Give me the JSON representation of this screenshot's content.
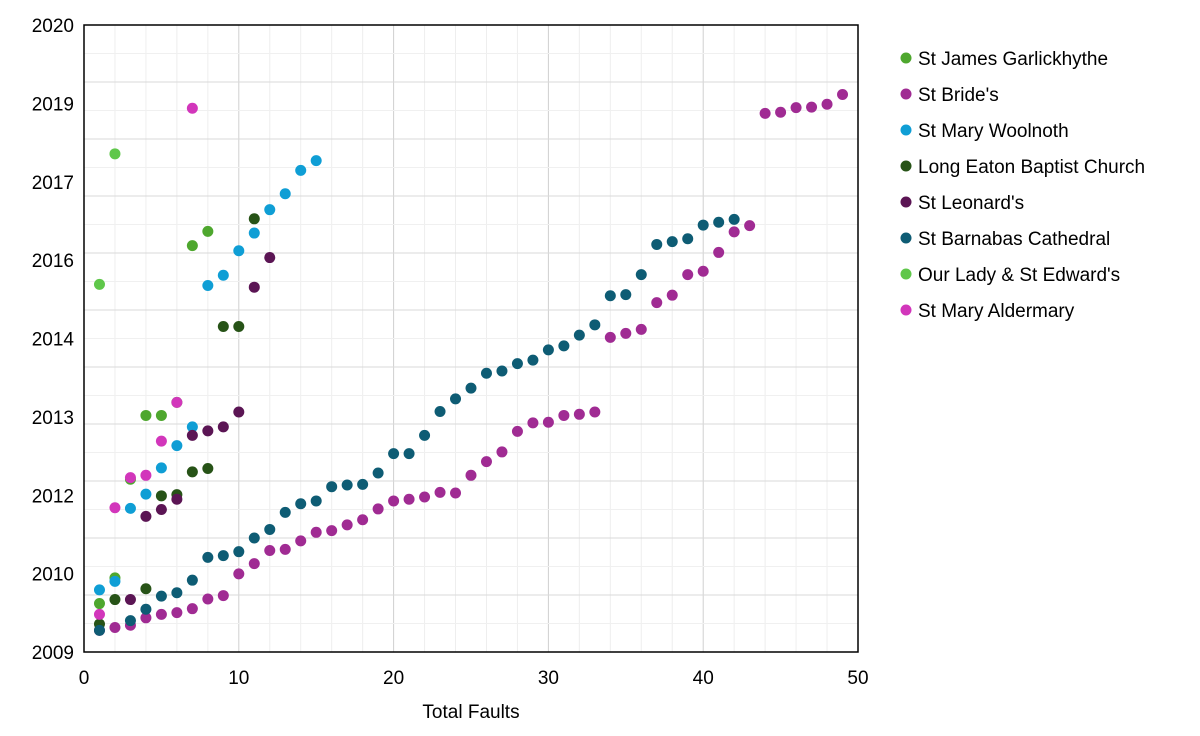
{
  "chart_data": {
    "type": "scatter",
    "title": "",
    "xlabel": "Total Faults",
    "ylabel": "",
    "xlim": [
      0,
      50
    ],
    "ylim": [
      2009,
      2020
    ],
    "xticks": [
      0,
      10,
      20,
      30,
      40,
      50
    ],
    "yticks": [
      2009,
      2010,
      2012,
      2013,
      2014,
      2016,
      2017,
      2019,
      2020
    ],
    "grid": true,
    "legend_position": "right",
    "series": [
      {
        "name": "St James Garlickhythe",
        "color": "#4ea72e",
        "points": [
          [
            1,
            2009.85
          ],
          [
            2,
            2010.3
          ],
          [
            3,
            2012.03
          ],
          [
            4,
            2013.15
          ],
          [
            5,
            2013.15
          ],
          [
            6,
            2013.38
          ],
          [
            7,
            2016.13
          ],
          [
            8,
            2016.38
          ]
        ]
      },
      {
        "name": "St Bride's",
        "color": "#a02b93",
        "points": [
          [
            1,
            2009.38
          ],
          [
            2,
            2009.43
          ],
          [
            3,
            2009.47
          ],
          [
            4,
            2009.6
          ],
          [
            5,
            2009.66
          ],
          [
            6,
            2009.69
          ],
          [
            7,
            2009.76
          ],
          [
            8,
            2009.93
          ],
          [
            9,
            2009.99
          ],
          [
            10,
            2010.37
          ],
          [
            11,
            2010.55
          ],
          [
            12,
            2010.78
          ],
          [
            13,
            2010.8
          ],
          [
            14,
            2010.95
          ],
          [
            15,
            2011.1
          ],
          [
            16,
            2011.13
          ],
          [
            17,
            2011.23
          ],
          [
            18,
            2011.32
          ],
          [
            19,
            2011.51
          ],
          [
            20,
            2011.65
          ],
          [
            21,
            2011.68
          ],
          [
            22,
            2011.72
          ],
          [
            23,
            2011.8
          ],
          [
            24,
            2011.79
          ],
          [
            25,
            2012.1
          ],
          [
            26,
            2012.34
          ],
          [
            27,
            2012.51
          ],
          [
            28,
            2012.87
          ],
          [
            29,
            2013.02
          ],
          [
            30,
            2013.03
          ],
          [
            31,
            2013.15
          ],
          [
            32,
            2013.17
          ],
          [
            33,
            2013.21
          ],
          [
            34,
            2014.52
          ],
          [
            35,
            2014.59
          ],
          [
            36,
            2014.66
          ],
          [
            37,
            2015.13
          ],
          [
            38,
            2015.26
          ],
          [
            39,
            2015.62
          ],
          [
            40,
            2015.68
          ],
          [
            41,
            2016.01
          ],
          [
            42,
            2016.37
          ],
          [
            43,
            2016.48
          ],
          [
            44,
            2018.45
          ],
          [
            45,
            2018.47
          ],
          [
            46,
            2018.55
          ],
          [
            47,
            2018.56
          ],
          [
            48,
            2018.61
          ],
          [
            49,
            2018.78
          ]
        ]
      },
      {
        "name": "St Mary Woolnoth",
        "color": "#0f9ed5",
        "points": [
          [
            1,
            2010.09
          ],
          [
            2,
            2010.24
          ],
          [
            3,
            2011.52
          ],
          [
            4,
            2011.77
          ],
          [
            5,
            2012.23
          ],
          [
            6,
            2012.62
          ],
          [
            7,
            2012.95
          ],
          [
            8,
            2015.43
          ],
          [
            9,
            2015.61
          ],
          [
            10,
            2016.04
          ],
          [
            11,
            2016.35
          ],
          [
            12,
            2016.76
          ],
          [
            13,
            2017.04
          ],
          [
            14,
            2017.45
          ],
          [
            15,
            2017.62
          ]
        ]
      },
      {
        "name": "Long Eaton Baptist Church",
        "color": "#275317",
        "points": [
          [
            1,
            2009.49
          ],
          [
            2,
            2009.92
          ],
          [
            4,
            2010.11
          ],
          [
            5,
            2011.74
          ],
          [
            6,
            2011.76
          ],
          [
            7,
            2012.16
          ],
          [
            8,
            2012.22
          ],
          [
            9,
            2014.71
          ],
          [
            10,
            2014.71
          ],
          [
            11,
            2016.6
          ]
        ]
      },
      {
        "name": "St Leonard's",
        "color": "#5b1554",
        "points": [
          [
            3,
            2009.92
          ],
          [
            4,
            2011.38
          ],
          [
            5,
            2011.5
          ],
          [
            6,
            2011.68
          ],
          [
            7,
            2012.8
          ],
          [
            8,
            2012.88
          ],
          [
            9,
            2012.95
          ],
          [
            10,
            2013.21
          ],
          [
            11,
            2015.4
          ],
          [
            12,
            2015.92
          ]
        ]
      },
      {
        "name": "St Barnabas Cathedral",
        "color": "#0e5c74",
        "points": [
          [
            1,
            2009.38
          ],
          [
            3,
            2009.55
          ],
          [
            4,
            2009.75
          ],
          [
            5,
            2009.98
          ],
          [
            6,
            2010.04
          ],
          [
            7,
            2010.26
          ],
          [
            8,
            2010.66
          ],
          [
            9,
            2010.69
          ],
          [
            10,
            2010.76
          ],
          [
            11,
            2011.0
          ],
          [
            12,
            2011.15
          ],
          [
            13,
            2011.45
          ],
          [
            14,
            2011.6
          ],
          [
            15,
            2011.65
          ],
          [
            16,
            2011.9
          ],
          [
            17,
            2011.93
          ],
          [
            18,
            2011.94
          ],
          [
            19,
            2012.14
          ],
          [
            20,
            2012.48
          ],
          [
            21,
            2012.48
          ],
          [
            22,
            2012.8
          ],
          [
            23,
            2013.22
          ],
          [
            24,
            2013.44
          ],
          [
            25,
            2013.63
          ],
          [
            26,
            2013.89
          ],
          [
            27,
            2013.93
          ],
          [
            28,
            2014.06
          ],
          [
            29,
            2014.12
          ],
          [
            30,
            2014.3
          ],
          [
            31,
            2014.37
          ],
          [
            32,
            2014.56
          ],
          [
            33,
            2014.74
          ],
          [
            34,
            2015.25
          ],
          [
            35,
            2015.27
          ],
          [
            36,
            2015.62
          ],
          [
            37,
            2016.15
          ],
          [
            38,
            2016.2
          ],
          [
            39,
            2016.25
          ],
          [
            40,
            2016.49
          ],
          [
            41,
            2016.54
          ],
          [
            42,
            2016.59
          ]
        ]
      },
      {
        "name": "Our Lady & St Edward's",
        "color": "#5fc74a",
        "points": [
          [
            1,
            2015.45
          ],
          [
            2,
            2017.74
          ]
        ]
      },
      {
        "name": "St Mary Aldermary",
        "color": "#d236bb",
        "points": [
          [
            1,
            2009.66
          ],
          [
            2,
            2011.53
          ],
          [
            3,
            2012.06
          ],
          [
            4,
            2012.1
          ],
          [
            5,
            2012.7
          ],
          [
            6,
            2013.38
          ],
          [
            7,
            2018.54
          ]
        ]
      }
    ]
  }
}
